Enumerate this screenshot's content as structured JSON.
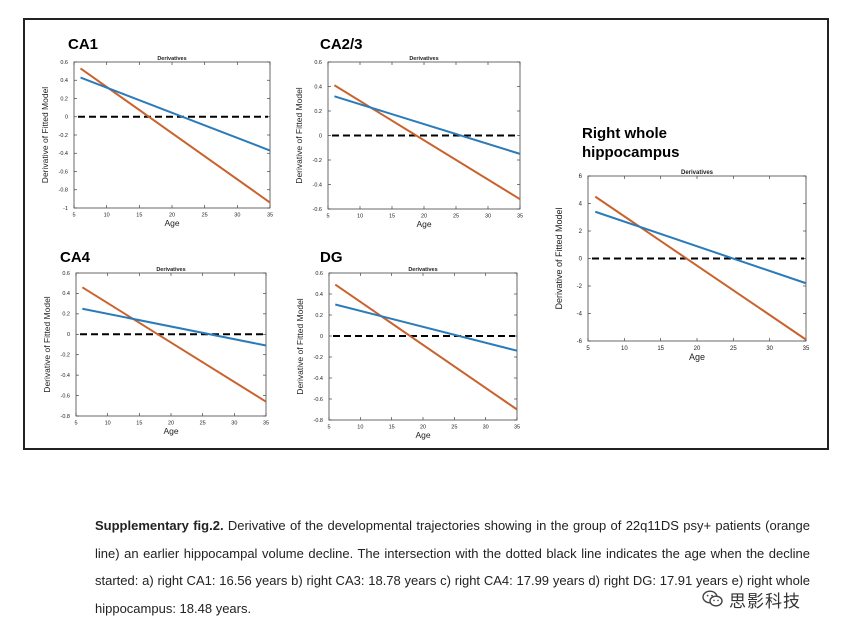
{
  "panel_titles": [
    "CA1",
    "CA2/3",
    "CA4",
    "DG",
    "Right whole\nhippocampus"
  ],
  "caption": {
    "label": "Supplementary fig.2.",
    "text": " Derivative of the developmental trajectories showing in the group of 22q11DS psy+ patients (orange line) an earlier hippocampal volume decline. The intersection with the dotted black line indicates the age when the decline started:  a) right CA1: 16.56 years b) right CA3: 18.78 years c) right CA4: 17.99 years d) right DG: 17.91 years e) right whole hippocampus: 18.48 years."
  },
  "watermark": {
    "text": "思影科技",
    "icon": "wechat-icon"
  },
  "colors": {
    "orange": "#C9632C",
    "blue": "#2B7BB9",
    "zero_line": "#000000"
  },
  "chart_data": [
    {
      "type": "line",
      "title": "Derivatives",
      "xlabel": "Age",
      "ylabel": "Derivative of Fitted Model",
      "xlim": [
        5,
        35
      ],
      "ylim": [
        -1,
        0.6
      ],
      "xticks": [
        5,
        10,
        15,
        20,
        25,
        30,
        35
      ],
      "yticks": [
        -1,
        -0.8,
        -0.6,
        -0.4,
        -0.2,
        0,
        0.2,
        0.4,
        0.6
      ],
      "series": [
        {
          "color": "orange",
          "x": [
            6,
            35
          ],
          "values": [
            0.53,
            -0.94
          ]
        },
        {
          "color": "blue",
          "x": [
            6,
            35
          ],
          "values": [
            0.43,
            -0.37
          ]
        }
      ],
      "reference_line": {
        "y": 0,
        "style": "dashed"
      }
    },
    {
      "type": "line",
      "title": "Derivatives",
      "xlabel": "Age",
      "ylabel": "Derivative of Fitted Model",
      "xlim": [
        5,
        35
      ],
      "ylim": [
        -0.6,
        0.6
      ],
      "xticks": [
        5,
        10,
        15,
        20,
        25,
        30,
        35
      ],
      "yticks": [
        -0.6,
        -0.4,
        -0.2,
        0,
        0.2,
        0.4,
        0.6
      ],
      "series": [
        {
          "color": "orange",
          "x": [
            6,
            35
          ],
          "values": [
            0.41,
            -0.52
          ]
        },
        {
          "color": "blue",
          "x": [
            6,
            35
          ],
          "values": [
            0.32,
            -0.15
          ]
        }
      ],
      "reference_line": {
        "y": 0,
        "style": "dashed"
      }
    },
    {
      "type": "line",
      "title": "Derivatives",
      "xlabel": "Age",
      "ylabel": "Derivative of Fitted Model",
      "xlim": [
        5,
        35
      ],
      "ylim": [
        -0.8,
        0.6
      ],
      "xticks": [
        5,
        10,
        15,
        20,
        25,
        30,
        35
      ],
      "yticks": [
        -0.8,
        -0.6,
        -0.4,
        -0.2,
        0,
        0.2,
        0.4,
        0.6
      ],
      "series": [
        {
          "color": "orange",
          "x": [
            6,
            35
          ],
          "values": [
            0.46,
            -0.66
          ]
        },
        {
          "color": "blue",
          "x": [
            6,
            35
          ],
          "values": [
            0.25,
            -0.11
          ]
        }
      ],
      "reference_line": {
        "y": 0,
        "style": "dashed"
      }
    },
    {
      "type": "line",
      "title": "Derivatives",
      "xlabel": "Age",
      "ylabel": "Derivative of Fitted Model",
      "xlim": [
        5,
        35
      ],
      "ylim": [
        -0.8,
        0.6
      ],
      "xticks": [
        5,
        10,
        15,
        20,
        25,
        30,
        35
      ],
      "yticks": [
        -0.8,
        -0.6,
        -0.4,
        -0.2,
        0,
        0.2,
        0.4,
        0.6
      ],
      "series": [
        {
          "color": "orange",
          "x": [
            6,
            35
          ],
          "values": [
            0.49,
            -0.7
          ]
        },
        {
          "color": "blue",
          "x": [
            6,
            35
          ],
          "values": [
            0.3,
            -0.14
          ]
        }
      ],
      "reference_line": {
        "y": 0,
        "style": "dashed"
      }
    },
    {
      "type": "line",
      "title": "Derivatives",
      "xlabel": "Age",
      "ylabel": "Derivative of Fitted Model",
      "xlim": [
        5,
        35
      ],
      "ylim": [
        -6,
        6
      ],
      "xticks": [
        5,
        10,
        15,
        20,
        25,
        30,
        35
      ],
      "yticks": [
        -6,
        -4,
        -2,
        0,
        2,
        4,
        6
      ],
      "series": [
        {
          "color": "orange",
          "x": [
            6,
            35
          ],
          "values": [
            4.5,
            -5.9
          ]
        },
        {
          "color": "blue",
          "x": [
            6,
            35
          ],
          "values": [
            3.4,
            -1.8
          ]
        }
      ],
      "reference_line": {
        "y": 0,
        "style": "dashed"
      }
    }
  ]
}
